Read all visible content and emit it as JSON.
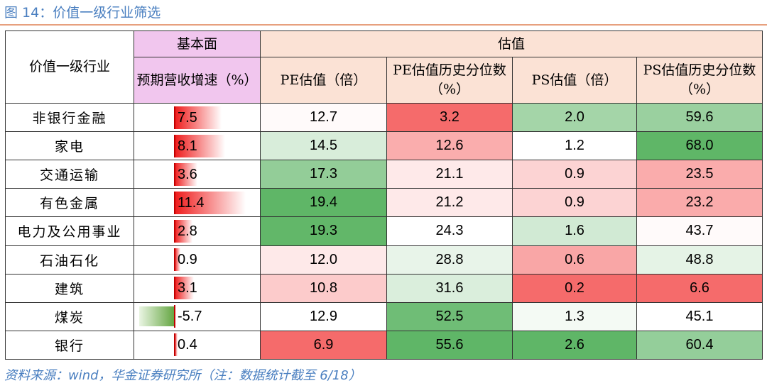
{
  "title": "图 14：价值一级行业筛选",
  "source": "资料来源：wind，华金证券研究所（注：数据统计截至 6/18）",
  "headers": {
    "industry": "价值一级行业",
    "fundamental_group": "基本面",
    "valuation_group": "估值",
    "growth": "预期营收增速（%）",
    "pe": "PE估值（倍）",
    "pe_pct": "PE估值历史分位数（%）",
    "ps": "PS估值（倍）",
    "ps_pct": "PS估值历史分位数（%）"
  },
  "colors": {
    "title": "#4a7fc0",
    "header_fill": "#fbe2d5",
    "fundamental_header_fill": "#f1c6ee",
    "bar_positive": "#ef1b1b",
    "bar_negative": "#63a540",
    "scale_red": "#f56565",
    "scale_green": "#5cb464"
  },
  "chart_data": {
    "type": "table",
    "columns": [
      "价值一级行业",
      "预期营收增速（%）",
      "PE估值（倍）",
      "PE估值历史分位数（%）",
      "PS估值（倍）",
      "PS估值历史分位数（%）"
    ],
    "rows": [
      {
        "industry": "非银行金融",
        "growth": 7.5,
        "pe": 12.7,
        "pe_pct": 3.2,
        "ps": 2.0,
        "ps_pct": 59.6
      },
      {
        "industry": "家电",
        "growth": 8.1,
        "pe": 14.5,
        "pe_pct": 12.6,
        "ps": 1.2,
        "ps_pct": 68.0
      },
      {
        "industry": "交通运输",
        "growth": 3.6,
        "pe": 17.3,
        "pe_pct": 21.1,
        "ps": 0.9,
        "ps_pct": 23.5
      },
      {
        "industry": "有色金属",
        "growth": 11.4,
        "pe": 19.4,
        "pe_pct": 21.2,
        "ps": 0.9,
        "ps_pct": 23.2
      },
      {
        "industry": "电力及公用事业",
        "growth": 2.8,
        "pe": 19.3,
        "pe_pct": 24.3,
        "ps": 1.6,
        "ps_pct": 43.7
      },
      {
        "industry": "石油石化",
        "growth": 0.9,
        "pe": 12.0,
        "pe_pct": 28.8,
        "ps": 0.6,
        "ps_pct": 48.8
      },
      {
        "industry": "建筑",
        "growth": 3.1,
        "pe": 10.8,
        "pe_pct": 31.6,
        "ps": 0.2,
        "ps_pct": 6.6
      },
      {
        "industry": "煤炭",
        "growth": -5.7,
        "pe": 12.9,
        "pe_pct": 52.5,
        "ps": 1.3,
        "ps_pct": 45.1
      },
      {
        "industry": "银行",
        "growth": 0.4,
        "pe": 6.9,
        "pe_pct": 55.6,
        "ps": 2.6,
        "ps_pct": 60.4
      }
    ]
  }
}
